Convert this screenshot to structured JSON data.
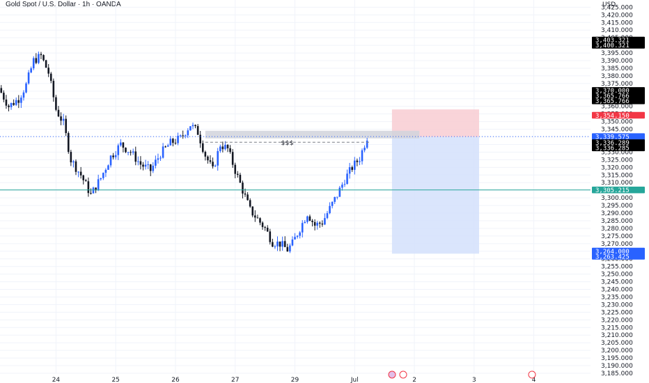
{
  "header": {
    "title": "Gold Spot / U.S. Dollar · 1h · OANDA"
  },
  "colors": {
    "bull": "#2962ff",
    "bear": "#131722",
    "grid": "#f0f3fa",
    "stop_zone": "#f8cdd2",
    "target_zone": "#d3e1fc",
    "liquidity_zone": "#d1d4dc",
    "support_line": "#26a69a",
    "tag_black": "#000000",
    "tag_red": "#f23645",
    "tag_blue": "#2962ff",
    "tag_teal": "#26a69a"
  },
  "chart_data": {
    "type": "candlestick",
    "title": "Gold Spot / U.S. Dollar · 1h · OANDA",
    "y_unit": "USD",
    "ylim": [
      3185,
      3427
    ],
    "y_ticks": [
      "3,425.000",
      "3,420.000",
      "3,415.000",
      "3,410.000",
      "3,405.000",
      "3,400.000",
      "3,395.000",
      "3,390.000",
      "3,385.000",
      "3,380.000",
      "3,375.000",
      "3,370.000",
      "3,365.000",
      "3,360.000",
      "3,355.000",
      "3,350.000",
      "3,345.000",
      "3,340.000",
      "3,335.000",
      "3,330.000",
      "3,325.000",
      "3,320.000",
      "3,315.000",
      "3,310.000",
      "3,305.000",
      "3,300.000",
      "3,295.000",
      "3,290.000",
      "3,285.000",
      "3,280.000",
      "3,275.000",
      "3,270.000",
      "3,265.000",
      "3,260.000",
      "3,255.000",
      "3,250.000",
      "3,245.000",
      "3,240.000",
      "3,235.000",
      "3,230.000",
      "3,225.000",
      "3,220.000",
      "3,215.000",
      "3,210.000",
      "3,205.000",
      "3,200.000",
      "3,195.000",
      "3,190.000",
      "3,185.000"
    ],
    "x_ticks": [
      {
        "label": "24",
        "bar": 22
      },
      {
        "label": "25",
        "bar": 46
      },
      {
        "label": "26",
        "bar": 70
      },
      {
        "label": "27",
        "bar": 94
      },
      {
        "label": "29",
        "bar": 118
      },
      {
        "label": "Jul",
        "bar": 142
      },
      {
        "label": "2",
        "bar": 166
      },
      {
        "label": "3",
        "bar": 190
      },
      {
        "label": "4",
        "bar": 214
      }
    ],
    "bar_count_visible": 252,
    "grid": true,
    "ohlc_anchors": [
      {
        "bar": 0,
        "price": 3372
      },
      {
        "bar": 4,
        "price": 3360
      },
      {
        "bar": 8,
        "price": 3365
      },
      {
        "bar": 11,
        "price": 3374
      },
      {
        "bar": 14,
        "price": 3390
      },
      {
        "bar": 17,
        "price": 3393
      },
      {
        "bar": 20,
        "price": 3382
      },
      {
        "bar": 23,
        "price": 3358
      },
      {
        "bar": 26,
        "price": 3349
      },
      {
        "bar": 29,
        "price": 3325
      },
      {
        "bar": 33,
        "price": 3315
      },
      {
        "bar": 37,
        "price": 3302
      },
      {
        "bar": 41,
        "price": 3313
      },
      {
        "bar": 45,
        "price": 3327
      },
      {
        "bar": 49,
        "price": 3335
      },
      {
        "bar": 53,
        "price": 3330
      },
      {
        "bar": 57,
        "price": 3322
      },
      {
        "bar": 61,
        "price": 3318
      },
      {
        "bar": 65,
        "price": 3329
      },
      {
        "bar": 69,
        "price": 3336
      },
      {
        "bar": 73,
        "price": 3339
      },
      {
        "bar": 77,
        "price": 3348
      },
      {
        "bar": 80,
        "price": 3343
      },
      {
        "bar": 83,
        "price": 3328
      },
      {
        "bar": 86,
        "price": 3318
      },
      {
        "bar": 89,
        "price": 3335
      },
      {
        "bar": 92,
        "price": 3332
      },
      {
        "bar": 95,
        "price": 3318
      },
      {
        "bar": 98,
        "price": 3305
      },
      {
        "bar": 101,
        "price": 3292
      },
      {
        "bar": 104,
        "price": 3286
      },
      {
        "bar": 107,
        "price": 3280
      },
      {
        "bar": 110,
        "price": 3271
      },
      {
        "bar": 113,
        "price": 3270
      },
      {
        "bar": 116,
        "price": 3266
      },
      {
        "bar": 118,
        "price": 3270
      },
      {
        "bar": 121,
        "price": 3280
      },
      {
        "bar": 124,
        "price": 3290
      },
      {
        "bar": 127,
        "price": 3282
      },
      {
        "bar": 130,
        "price": 3284
      },
      {
        "bar": 133,
        "price": 3293
      },
      {
        "bar": 136,
        "price": 3302
      },
      {
        "bar": 139,
        "price": 3312
      },
      {
        "bar": 142,
        "price": 3320
      },
      {
        "bar": 145,
        "price": 3326
      },
      {
        "bar": 148,
        "price": 3340
      }
    ],
    "annotations": {
      "liquidity_label": "$$$",
      "liquidity_zone": {
        "from_bar": 82,
        "to_bar": 168,
        "top": 3344,
        "bottom": 3339
      },
      "sweep_line": {
        "from_bar": 82,
        "to_bar": 148,
        "price": 3336.5
      },
      "stop_zone": {
        "from_bar": 157,
        "to_bar": 192,
        "top": 3358,
        "bottom": 3340
      },
      "target_zone": {
        "from_bar": 157,
        "to_bar": 192,
        "top": 3340,
        "bottom": 3263.4
      },
      "support_line_price": 3305.2,
      "current_price_line": 3340.2
    },
    "price_tags": [
      {
        "lines": [
          "3,403.321",
          "3,400.321"
        ],
        "price": 3401.8,
        "color": "black"
      },
      {
        "lines": [
          "3,370.000",
          "3,365.766",
          "3,365.766"
        ],
        "price": 3367,
        "color": "black"
      },
      {
        "lines": [
          "3,354.150"
        ],
        "price": 3354.15,
        "color": "red"
      },
      {
        "lines": [
          "3,339.575",
          "3,339.575"
        ],
        "price": 3338.5,
        "color": "blue"
      },
      {
        "lines": [
          "3,336.289",
          "3,336.285"
        ],
        "price": 3334.5,
        "color": "black"
      },
      {
        "lines": [
          "3,305.215"
        ],
        "price": 3305.2,
        "color": "teal"
      },
      {
        "lines": [
          "3,264.000",
          "3,263.425"
        ],
        "price": 3263.4,
        "color": "blue"
      }
    ]
  }
}
